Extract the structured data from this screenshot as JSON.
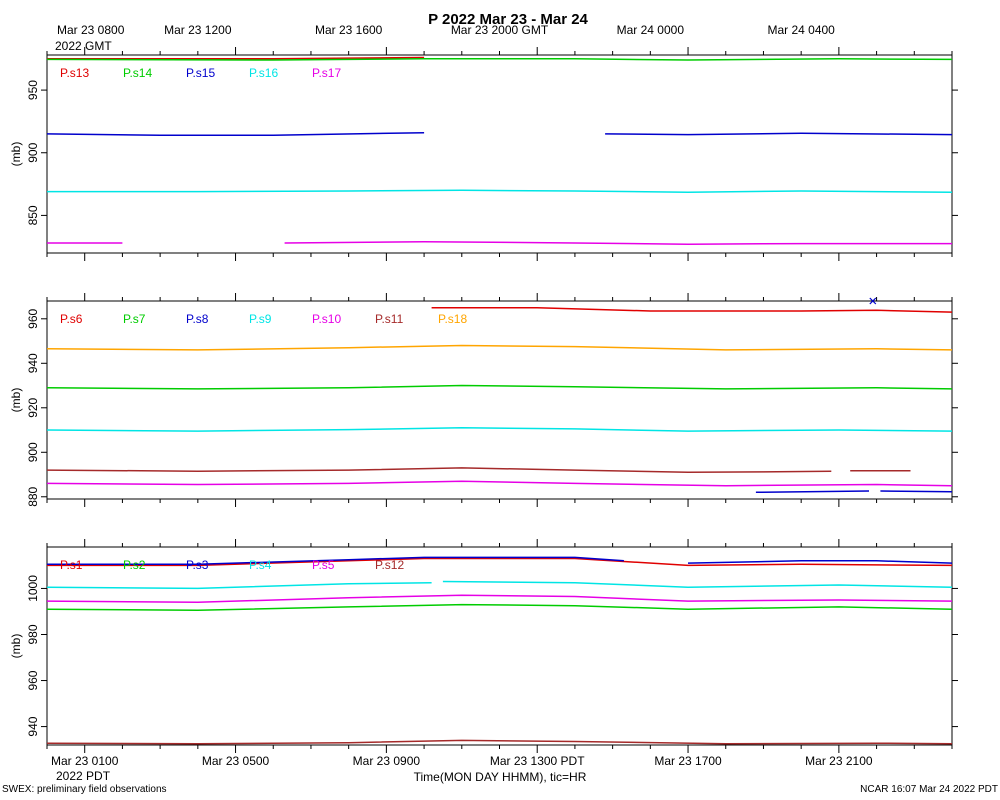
{
  "title": "P 2022 Mar 23 - Mar 24",
  "footer_left": "SWEX: preliminary field observations",
  "footer_right": "NCAR 16:07 Mar 24 2022 PDT",
  "x_axis_label": "Time(MON DAY HHMM), tic=HR",
  "top_time_labels": [
    {
      "t": 0,
      "text": "Mar 23 0800",
      "text2": "2022 GMT"
    },
    {
      "t": 4,
      "text": "Mar 23 1200"
    },
    {
      "t": 8,
      "text": "Mar 23 1600"
    },
    {
      "t": 12,
      "text": "Mar 23 2000 GMT"
    },
    {
      "t": 16,
      "text": "Mar 24 0000"
    },
    {
      "t": 20,
      "text": "Mar 24 0400"
    }
  ],
  "bottom_time_labels": [
    {
      "t": 1,
      "text": "Mar 23 0100",
      "text2": "2022 PDT"
    },
    {
      "t": 5,
      "text": "Mar 23 0500"
    },
    {
      "t": 9,
      "text": "Mar 23 0900"
    },
    {
      "t": 13,
      "text": "Mar 23 1300 PDT"
    },
    {
      "t": 17,
      "text": "Mar 23 1700"
    },
    {
      "t": 21,
      "text": "Mar 23 2100"
    }
  ],
  "chart_data": [
    {
      "type": "line",
      "ylabel": "(mb)",
      "xlim": [
        0,
        24
      ],
      "ylim": [
        820,
        978
      ],
      "yticks": [
        850,
        900,
        950
      ],
      "series": [
        {
          "name": "P.s13",
          "color": "#e00000",
          "segments": [
            [
              [
                0,
                975
              ],
              [
                6,
                975
              ],
              [
                10,
                976
              ]
            ]
          ]
        },
        {
          "name": "P.s14",
          "color": "#00cc00",
          "segments": [
            [
              [
                0,
                974.5
              ],
              [
                6,
                974
              ],
              [
                10,
                975
              ],
              [
                14,
                975
              ],
              [
                17,
                974
              ],
              [
                21,
                975
              ],
              [
                24,
                974.5
              ]
            ]
          ]
        },
        {
          "name": "P.s15",
          "color": "#0000cc",
          "segments": [
            [
              [
                0,
                915
              ],
              [
                3,
                914
              ],
              [
                6,
                914
              ],
              [
                10,
                916
              ]
            ],
            [
              [
                14.8,
                915
              ],
              [
                17,
                914.5
              ],
              [
                20,
                915.5
              ],
              [
                24,
                914.5
              ]
            ]
          ]
        },
        {
          "name": "P.s16",
          "color": "#00e5e5",
          "segments": [
            [
              [
                0,
                869
              ],
              [
                4,
                869
              ],
              [
                8,
                869.5
              ],
              [
                11,
                870
              ],
              [
                14,
                869.5
              ],
              [
                17,
                868.5
              ],
              [
                20,
                869.5
              ],
              [
                24,
                868.5
              ]
            ]
          ]
        },
        {
          "name": "P.s17",
          "color": "#e600e6",
          "segments": [
            [
              [
                0,
                828
              ],
              [
                2,
                828
              ]
            ],
            [
              [
                6.3,
                828
              ],
              [
                10,
                829
              ],
              [
                14,
                828
              ],
              [
                17,
                827
              ],
              [
                20,
                827.5
              ],
              [
                24,
                827.5
              ]
            ]
          ]
        }
      ]
    },
    {
      "type": "line",
      "ylabel": "(mb)",
      "xlim": [
        0,
        24
      ],
      "ylim": [
        879,
        968
      ],
      "yticks": [
        880,
        900,
        920,
        940,
        960
      ],
      "series": [
        {
          "name": "P.s6",
          "color": "#e00000",
          "segments": [
            [
              [
                10.2,
                965
              ],
              [
                13,
                965
              ],
              [
                16,
                963.5
              ],
              [
                20,
                963.5
              ],
              [
                22,
                963.8
              ],
              [
                24,
                963
              ]
            ]
          ]
        },
        {
          "name": "P.s7",
          "color": "#00cc00",
          "segments": [
            [
              [
                0,
                929
              ],
              [
                4,
                928.5
              ],
              [
                8,
                929
              ],
              [
                11,
                930
              ],
              [
                14,
                929.5
              ],
              [
                18,
                928.5
              ],
              [
                22,
                929
              ],
              [
                24,
                928.5
              ]
            ]
          ]
        },
        {
          "name": "P.s8",
          "color": "#0000cc",
          "segments": [
            [
              [
                18.8,
                882
              ],
              [
                21.8,
                882.6
              ]
            ],
            [
              [
                22.1,
                882.6
              ],
              [
                24,
                882.3
              ]
            ]
          ]
        },
        {
          "name": "P.s9",
          "color": "#00e5e5",
          "segments": [
            [
              [
                0,
                910
              ],
              [
                4,
                909.5
              ],
              [
                8,
                910.2
              ],
              [
                11,
                911
              ],
              [
                14,
                910.5
              ],
              [
                17,
                909.5
              ],
              [
                21,
                910
              ],
              [
                24,
                909.5
              ]
            ]
          ]
        },
        {
          "name": "P.s10",
          "color": "#e600e6",
          "segments": [
            [
              [
                0,
                886
              ],
              [
                4,
                885.5
              ],
              [
                8,
                886
              ],
              [
                11,
                887
              ],
              [
                14,
                886
              ],
              [
                18,
                885
              ],
              [
                22,
                885.5
              ],
              [
                24,
                885
              ]
            ]
          ]
        },
        {
          "name": "P.s11",
          "color": "#a52a2a",
          "segments": [
            [
              [
                0,
                892
              ],
              [
                4,
                891.5
              ],
              [
                8,
                892
              ],
              [
                11,
                893
              ],
              [
                14,
                892
              ],
              [
                17,
                891
              ],
              [
                19,
                891.2
              ],
              [
                20.8,
                891.5
              ]
            ],
            [
              [
                21.3,
                891.7
              ],
              [
                22.9,
                891.7
              ]
            ]
          ]
        },
        {
          "name": "P.s18",
          "color": "#ffa500",
          "segments": [
            [
              [
                0,
                946.5
              ],
              [
                4,
                946
              ],
              [
                8,
                947
              ],
              [
                11,
                948
              ],
              [
                14,
                947.5
              ],
              [
                18,
                946
              ],
              [
                22,
                946.5
              ],
              [
                24,
                946
              ]
            ]
          ]
        }
      ],
      "markers": [
        {
          "x": 21.9,
          "y": 968,
          "color": "#0000cc",
          "symbol": "x"
        }
      ]
    },
    {
      "type": "line",
      "ylabel": "(mb)",
      "xlim": [
        0,
        24
      ],
      "ylim": [
        932,
        1018
      ],
      "yticks": [
        940,
        960,
        980,
        1000
      ],
      "series": [
        {
          "name": "P.s1",
          "color": "#e00000",
          "segments": [
            [
              [
                0,
                1010
              ],
              [
                4,
                1010
              ],
              [
                8,
                1012
              ],
              [
                10,
                1013
              ],
              [
                14,
                1013
              ],
              [
                17,
                1010
              ],
              [
                20,
                1010.5
              ],
              [
                24,
                1010
              ]
            ]
          ]
        },
        {
          "name": "P.s2",
          "color": "#00cc00",
          "segments": [
            [
              [
                0,
                991
              ],
              [
                4,
                990.5
              ],
              [
                8,
                992
              ],
              [
                11,
                993
              ],
              [
                14,
                992.5
              ],
              [
                17,
                991
              ],
              [
                21,
                992
              ],
              [
                24,
                991
              ]
            ]
          ]
        },
        {
          "name": "P.s3",
          "color": "#0000cc",
          "segments": [
            [
              [
                0,
                1010.5
              ],
              [
                4,
                1010.5
              ],
              [
                8,
                1012.5
              ],
              [
                10,
                1013.5
              ],
              [
                14,
                1013.5
              ],
              [
                15.3,
                1012
              ]
            ],
            [
              [
                17,
                1011
              ],
              [
                20,
                1012
              ],
              [
                22,
                1012
              ],
              [
                24,
                1011
              ]
            ]
          ]
        },
        {
          "name": "P.s4",
          "color": "#00e5e5",
          "segments": [
            [
              [
                0,
                1000.5
              ],
              [
                4,
                1000
              ],
              [
                8,
                1002
              ],
              [
                10.2,
                1002.5
              ]
            ],
            [
              [
                10.5,
                1003
              ],
              [
                14,
                1002.5
              ],
              [
                17,
                1000.5
              ],
              [
                21,
                1001.5
              ],
              [
                24,
                1000.5
              ]
            ]
          ]
        },
        {
          "name": "P.s5",
          "color": "#e600e6",
          "segments": [
            [
              [
                0,
                994.5
              ],
              [
                4,
                994
              ],
              [
                8,
                996
              ],
              [
                11,
                997
              ],
              [
                14,
                996.5
              ],
              [
                17,
                994.5
              ],
              [
                21,
                995
              ],
              [
                24,
                994.5
              ]
            ]
          ]
        },
        {
          "name": "P.s12",
          "color": "#a52a2a",
          "segments": [
            [
              [
                0,
                932.8
              ],
              [
                4,
                932.5
              ],
              [
                8,
                933
              ],
              [
                11,
                934
              ],
              [
                14,
                933.5
              ],
              [
                18,
                932.5
              ],
              [
                22,
                932.8
              ],
              [
                24,
                932.5
              ]
            ]
          ]
        }
      ]
    }
  ]
}
